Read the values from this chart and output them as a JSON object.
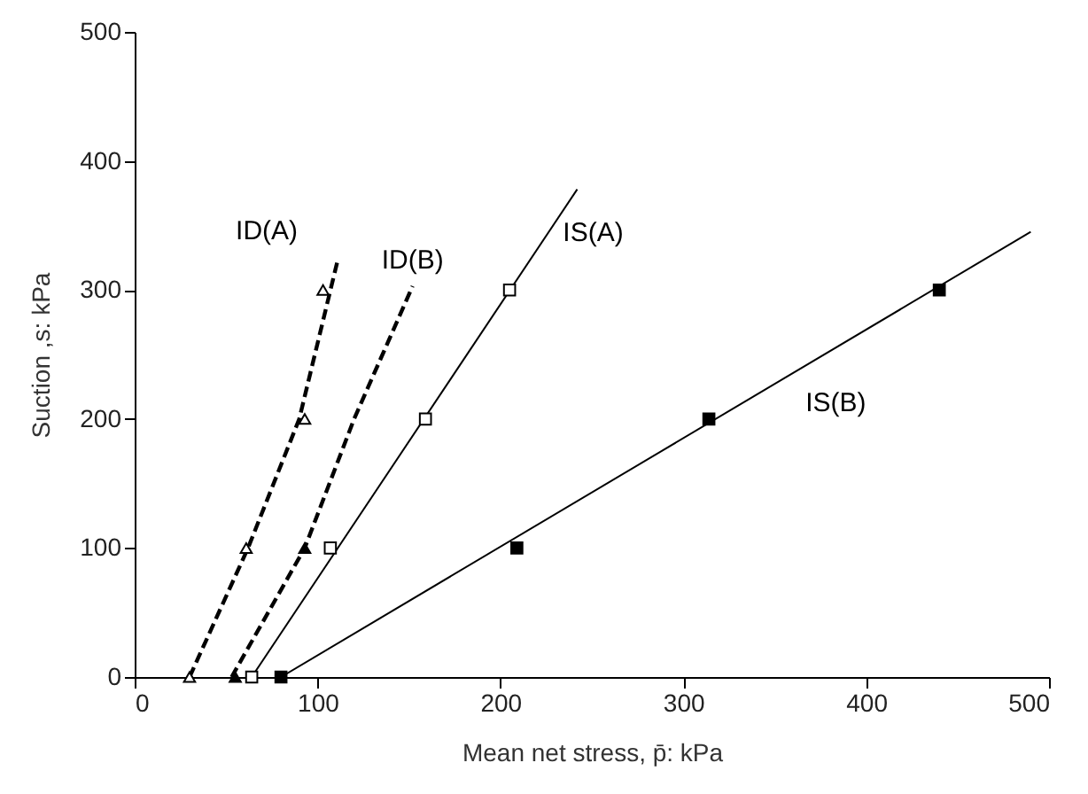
{
  "chart_data": {
    "type": "line",
    "xlabel": "Mean net stress, p̄: kPa",
    "ylabel": "Suction ,s: kPa",
    "xlim": [
      0,
      500
    ],
    "ylim": [
      0,
      500
    ],
    "xticks": [
      0,
      100,
      200,
      300,
      400,
      500
    ],
    "yticks": [
      0,
      100,
      200,
      300,
      400,
      500
    ],
    "grid": false,
    "series": [
      {
        "name": "ID(A)",
        "color": "#000000",
        "line_style": "dashed",
        "marker": "none",
        "x": [
          30,
          62,
          90,
          111
        ],
        "values": [
          0,
          100,
          200,
          323
        ]
      },
      {
        "type": "scatter",
        "color": "#ffffff",
        "marker": "triangle",
        "x": [
          30,
          61,
          93,
          103
        ],
        "values": [
          0,
          100,
          200,
          300
        ]
      },
      {
        "name": "ID(B)",
        "color": "#000000",
        "line_style": "dashed",
        "marker": "none",
        "x": [
          53,
          93,
          120,
          152
        ],
        "values": [
          0,
          100,
          200,
          303
        ]
      },
      {
        "type": "scatter",
        "color": "#000000",
        "marker": "triangle",
        "x": [
          55,
          93
        ],
        "values": [
          0,
          100
        ]
      },
      {
        "name": "IS(A)",
        "color": "#000000",
        "line_style": "solid",
        "marker": "none",
        "x": [
          64,
          242
        ],
        "values": [
          0,
          378
        ]
      },
      {
        "type": "scatter",
        "color": "#ffffff",
        "marker": "square",
        "x": [
          64,
          107,
          159,
          205
        ],
        "values": [
          0,
          100,
          200,
          300
        ]
      },
      {
        "name": "IS(B)",
        "color": "#000000",
        "line_style": "solid",
        "marker": "none",
        "x": [
          80,
          490
        ],
        "values": [
          0,
          345
        ]
      },
      {
        "type": "scatter",
        "color": "#000000",
        "marker": "square",
        "x": [
          80,
          209,
          314,
          440
        ],
        "values": [
          0,
          100,
          200,
          300
        ]
      }
    ]
  }
}
